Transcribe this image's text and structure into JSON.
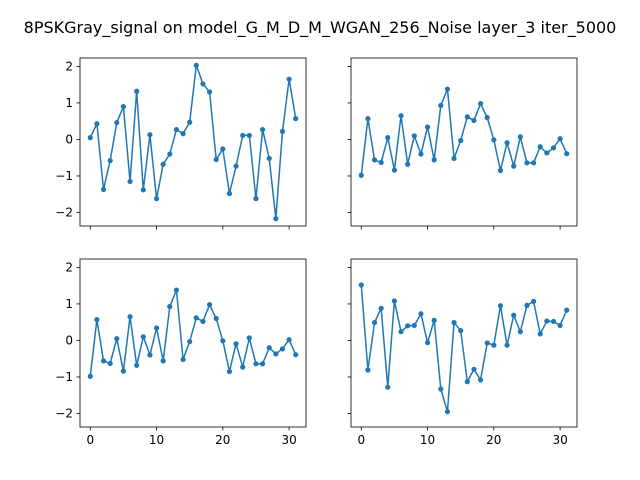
{
  "figure": {
    "title": "8PSKGray_signal on model_G_M_D_M_WGAN_256_Noise layer_3 iter_5000"
  },
  "chart_data": [
    {
      "type": "line",
      "panel": "top-left",
      "x": [
        0,
        1,
        2,
        3,
        4,
        5,
        6,
        7,
        8,
        9,
        10,
        11,
        12,
        13,
        14,
        15,
        16,
        17,
        18,
        19,
        20,
        21,
        22,
        23,
        24,
        25,
        26,
        27,
        28,
        29,
        30,
        31
      ],
      "values": [
        0.05,
        0.43,
        -1.37,
        -0.58,
        0.46,
        0.9,
        -1.15,
        1.32,
        -1.38,
        0.13,
        -1.62,
        -0.68,
        -0.4,
        0.27,
        0.16,
        0.47,
        2.03,
        1.52,
        1.3,
        -0.55,
        -0.26,
        -1.48,
        -0.73,
        0.11,
        0.11,
        -1.62,
        0.27,
        -0.52,
        -2.17,
        0.22,
        1.65,
        0.57
      ],
      "xlim": [
        -1.55,
        32.55
      ],
      "ylim": [
        -2.37,
        2.23
      ],
      "xticks": [
        0,
        10,
        20,
        30
      ],
      "yticks": [
        -2,
        -1,
        0,
        1,
        2
      ],
      "xticklabels": [
        "0",
        "10",
        "20",
        "30"
      ],
      "yticklabels": [
        "−2",
        "−1",
        "0",
        "1",
        "2"
      ],
      "show_x_ticklabels": false,
      "show_y_ticklabels": true,
      "color": "#1f77b4"
    },
    {
      "type": "line",
      "panel": "top-right",
      "x": [
        0,
        1,
        2,
        3,
        4,
        5,
        6,
        7,
        8,
        9,
        10,
        11,
        12,
        13,
        14,
        15,
        16,
        17,
        18,
        19,
        20,
        21,
        22,
        23,
        24,
        25,
        26,
        27,
        28,
        29,
        30,
        31
      ],
      "values": [
        -0.98,
        0.57,
        -0.56,
        -0.63,
        0.05,
        -0.84,
        0.65,
        -0.68,
        0.1,
        -0.4,
        0.34,
        -0.56,
        0.93,
        1.38,
        -0.52,
        -0.03,
        0.62,
        0.52,
        0.98,
        0.6,
        -0.01,
        -0.85,
        -0.09,
        -0.73,
        0.07,
        -0.64,
        -0.64,
        -0.2,
        -0.37,
        -0.23,
        0.02,
        -0.39
      ],
      "xlim": [
        -1.55,
        32.55
      ],
      "ylim": [
        -2.37,
        2.23
      ],
      "xticks": [
        0,
        10,
        20,
        30
      ],
      "yticks": [
        -2,
        -1,
        0,
        1,
        2
      ],
      "xticklabels": [
        "0",
        "10",
        "20",
        "30"
      ],
      "yticklabels": [
        "−2",
        "−1",
        "0",
        "1",
        "2"
      ],
      "show_x_ticklabels": false,
      "show_y_ticklabels": false,
      "color": "#1f77b4"
    },
    {
      "type": "line",
      "panel": "bottom-left",
      "x": [
        0,
        1,
        2,
        3,
        4,
        5,
        6,
        7,
        8,
        9,
        10,
        11,
        12,
        13,
        14,
        15,
        16,
        17,
        18,
        19,
        20,
        21,
        22,
        23,
        24,
        25,
        26,
        27,
        28,
        29,
        30,
        31
      ],
      "values": [
        -0.98,
        0.57,
        -0.56,
        -0.63,
        0.05,
        -0.84,
        0.65,
        -0.68,
        0.1,
        -0.4,
        0.34,
        -0.56,
        0.93,
        1.38,
        -0.52,
        -0.03,
        0.62,
        0.52,
        0.98,
        0.6,
        -0.01,
        -0.85,
        -0.09,
        -0.73,
        0.07,
        -0.64,
        -0.64,
        -0.2,
        -0.37,
        -0.23,
        0.02,
        -0.39
      ],
      "xlim": [
        -1.55,
        32.55
      ],
      "ylim": [
        -2.37,
        2.23
      ],
      "xticks": [
        0,
        10,
        20,
        30
      ],
      "yticks": [
        -2,
        -1,
        0,
        1,
        2
      ],
      "xticklabels": [
        "0",
        "10",
        "20",
        "30"
      ],
      "yticklabels": [
        "−2",
        "−1",
        "0",
        "1",
        "2"
      ],
      "show_x_ticklabels": true,
      "show_y_ticklabels": true,
      "color": "#1f77b4"
    },
    {
      "type": "line",
      "panel": "bottom-right",
      "x": [
        0,
        1,
        2,
        3,
        4,
        5,
        6,
        7,
        8,
        9,
        10,
        11,
        12,
        13,
        14,
        15,
        16,
        17,
        18,
        19,
        20,
        21,
        22,
        23,
        24,
        25,
        26,
        27,
        28,
        29,
        30,
        31
      ],
      "values": [
        1.52,
        -0.81,
        0.49,
        0.88,
        -1.28,
        1.08,
        0.24,
        0.4,
        0.41,
        0.73,
        -0.06,
        0.55,
        -1.33,
        -1.95,
        0.49,
        0.27,
        -1.13,
        -0.79,
        -1.08,
        -0.07,
        -0.13,
        0.95,
        -0.13,
        0.69,
        0.24,
        0.96,
        1.07,
        0.18,
        0.53,
        0.52,
        0.41,
        0.83
      ],
      "xlim": [
        -1.55,
        32.55
      ],
      "ylim": [
        -2.37,
        2.23
      ],
      "xticks": [
        0,
        10,
        20,
        30
      ],
      "yticks": [
        -2,
        -1,
        0,
        1,
        2
      ],
      "xticklabels": [
        "0",
        "10",
        "20",
        "30"
      ],
      "yticklabels": [
        "−2",
        "−1",
        "0",
        "1",
        "2"
      ],
      "show_x_ticklabels": true,
      "show_y_ticklabels": false,
      "color": "#1f77b4"
    }
  ]
}
